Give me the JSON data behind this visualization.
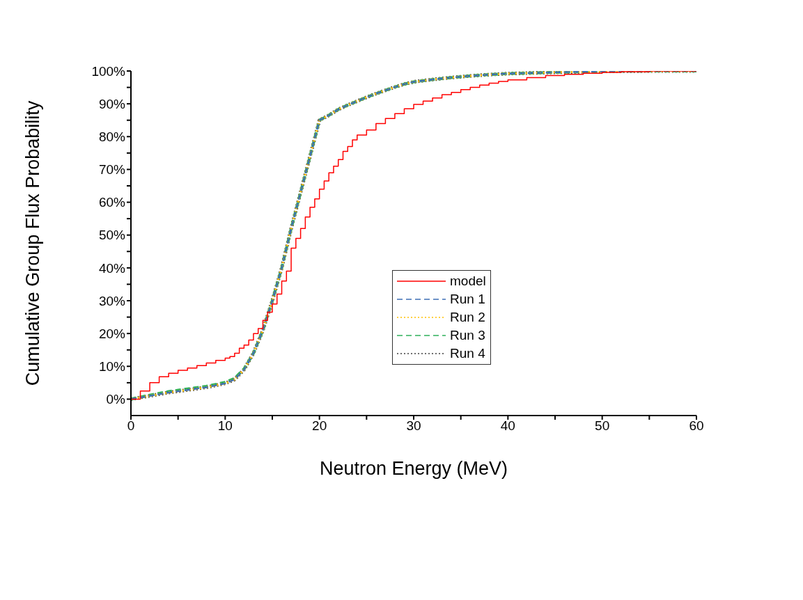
{
  "chart_data": {
    "type": "line",
    "xlabel": "Neutron Energy (MeV)",
    "ylabel": "Cumulative Group Flux Probability",
    "xlim": [
      0,
      60
    ],
    "xticks": [
      0,
      {
        "value": 5,
        "label": null
      },
      10,
      {
        "value": 15,
        "label": null
      },
      20,
      {
        "value": 25,
        "label": null
      },
      30,
      {
        "value": 35,
        "label": null
      },
      40,
      {
        "value": 45,
        "label": null
      },
      50,
      {
        "value": 55,
        "label": null
      },
      60
    ],
    "ylim": [
      -5,
      100
    ],
    "yticks": [
      {
        "value": 0,
        "label": "0%"
      },
      {
        "value": 5,
        "label": null
      },
      {
        "value": 10,
        "label": "10%"
      },
      {
        "value": 15,
        "label": null
      },
      {
        "value": 20,
        "label": "20%"
      },
      {
        "value": 25,
        "label": null
      },
      {
        "value": 30,
        "label": "30%"
      },
      {
        "value": 35,
        "label": null
      },
      {
        "value": 40,
        "label": "40%"
      },
      {
        "value": 45,
        "label": null
      },
      {
        "value": 50,
        "label": "50%"
      },
      {
        "value": 55,
        "label": null
      },
      {
        "value": 60,
        "label": "60%"
      },
      {
        "value": 65,
        "label": null
      },
      {
        "value": 70,
        "label": "70%"
      },
      {
        "value": 75,
        "label": null
      },
      {
        "value": 80,
        "label": "80%"
      },
      {
        "value": 85,
        "label": null
      },
      {
        "value": 90,
        "label": "90%"
      },
      {
        "value": 95,
        "label": null
      },
      {
        "value": 100,
        "label": "100%"
      }
    ],
    "grid": false,
    "legend": "center",
    "marker": "none",
    "series": [
      {
        "name": "model",
        "type": "step",
        "color": "#ff0000",
        "line_style": "solid",
        "x": [
          0,
          1,
          2,
          3,
          4,
          5,
          6,
          7,
          8,
          9,
          10,
          10.5,
          11,
          11.5,
          12,
          12.5,
          13,
          13.5,
          14,
          14.5,
          15,
          15.5,
          16,
          16.5,
          17,
          17.5,
          18,
          18.5,
          19,
          19.5,
          20,
          20.5,
          21,
          21.5,
          22,
          22.5,
          23,
          23.5,
          24,
          25,
          26,
          27,
          28,
          29,
          30,
          31,
          32,
          33,
          34,
          35,
          36,
          37,
          38,
          39,
          40,
          42,
          44,
          46,
          48,
          50,
          52,
          55,
          60
        ],
        "values": [
          0,
          2.5,
          5,
          6.8,
          7.9,
          8.8,
          9.5,
          10.2,
          11,
          11.8,
          12.5,
          13,
          14,
          15.5,
          16.5,
          18,
          20,
          21.5,
          24,
          26.5,
          29,
          32,
          36,
          39,
          46,
          49,
          52,
          55.5,
          58.5,
          61,
          64,
          66.5,
          69,
          71,
          73,
          75.5,
          77,
          79,
          80.5,
          82,
          84,
          85.5,
          87,
          88.5,
          89.8,
          90.8,
          91.8,
          92.8,
          93.5,
          94.3,
          95,
          95.7,
          96.3,
          96.8,
          97.3,
          98,
          98.6,
          99,
          99.3,
          99.6,
          99.8,
          100,
          100
        ]
      },
      {
        "name": "Run 1",
        "color": "#3e6fb5",
        "line_style": "dashed",
        "x": [
          0,
          2,
          4,
          6,
          8,
          10,
          11,
          12,
          13,
          14,
          15,
          16,
          17,
          18,
          19,
          20,
          21,
          22,
          23,
          24,
          25,
          26,
          27,
          28,
          29,
          30,
          32,
          34,
          36,
          38,
          40,
          45,
          50,
          55,
          60
        ],
        "values": [
          0,
          1,
          2,
          2.8,
          3.6,
          4.8,
          6,
          9,
          14,
          21,
          30,
          40,
          52,
          63,
          74,
          85,
          86.5,
          88.3,
          89.6,
          90.8,
          92,
          93.1,
          94.1,
          95.1,
          96,
          96.7,
          97.4,
          98,
          98.5,
          98.9,
          99.2,
          99.6,
          99.9,
          100,
          100
        ]
      },
      {
        "name": "Run 2",
        "color": "#ffc000",
        "line_style": "dotted",
        "x": [
          0,
          2,
          4,
          6,
          8,
          10,
          11,
          12,
          13,
          14,
          15,
          16,
          17,
          18,
          19,
          20,
          21,
          22,
          23,
          24,
          25,
          26,
          27,
          28,
          29,
          30,
          32,
          34,
          36,
          38,
          40,
          45,
          50,
          55,
          60
        ],
        "values": [
          0,
          1,
          2,
          2.8,
          3.6,
          4.8,
          6,
          9,
          14,
          21,
          30,
          40,
          52,
          63,
          74,
          85,
          86.5,
          88.3,
          89.6,
          90.8,
          92,
          93.1,
          94.1,
          95.1,
          96,
          96.7,
          97.4,
          98,
          98.5,
          98.9,
          99.2,
          99.6,
          99.9,
          100,
          100
        ]
      },
      {
        "name": "Run 3",
        "color": "#2eb05a",
        "line_style": "dashed",
        "x": [
          0,
          2,
          4,
          6,
          8,
          10,
          11,
          12,
          13,
          14,
          15,
          16,
          17,
          18,
          19,
          20,
          21,
          22,
          23,
          24,
          25,
          26,
          27,
          28,
          29,
          30,
          32,
          34,
          36,
          38,
          40,
          45,
          50,
          55,
          60
        ],
        "values": [
          0,
          1.2,
          2.3,
          3.1,
          3.9,
          5.1,
          6.3,
          9.2,
          14,
          21,
          30,
          40,
          52,
          63,
          74,
          85,
          86.5,
          88.3,
          89.6,
          90.8,
          92,
          93.1,
          94.1,
          95.1,
          96,
          96.7,
          97.4,
          98,
          98.5,
          98.9,
          99.2,
          99.6,
          99.9,
          100,
          100
        ]
      },
      {
        "name": "Run 4",
        "color": "#404040",
        "line_style": "dotted",
        "x": [
          0,
          2,
          4,
          6,
          8,
          10,
          11,
          12,
          13,
          14,
          15,
          16,
          17,
          18,
          19,
          20,
          21,
          22,
          23,
          24,
          25,
          26,
          27,
          28,
          29,
          30,
          32,
          34,
          36,
          38,
          40,
          45,
          50,
          55,
          60
        ],
        "values": [
          0,
          1,
          2,
          2.8,
          3.6,
          4.8,
          6,
          9,
          14,
          21,
          30,
          40,
          52,
          63,
          74,
          85,
          86.5,
          88.3,
          89.6,
          90.8,
          92,
          93.1,
          94.1,
          95.1,
          96,
          96.7,
          97.4,
          98,
          98.5,
          98.9,
          99.2,
          99.6,
          99.9,
          100,
          100
        ]
      }
    ]
  }
}
